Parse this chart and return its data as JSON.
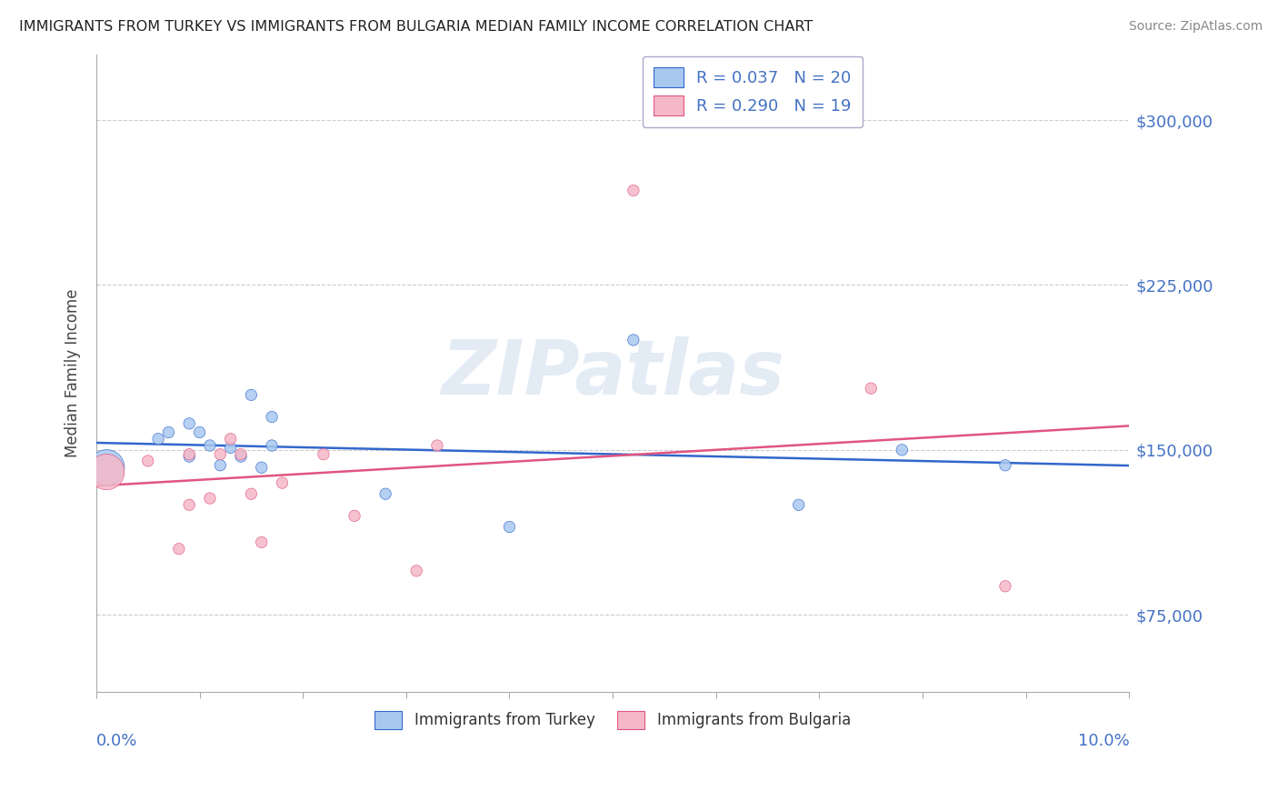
{
  "title": "IMMIGRANTS FROM TURKEY VS IMMIGRANTS FROM BULGARIA MEDIAN FAMILY INCOME CORRELATION CHART",
  "source": "Source: ZipAtlas.com",
  "ylabel": "Median Family Income",
  "x_min": 0.0,
  "x_max": 0.1,
  "y_min": 40000,
  "y_max": 330000,
  "yticks": [
    75000,
    150000,
    225000,
    300000
  ],
  "ytick_labels": [
    "$75,000",
    "$150,000",
    "$225,000",
    "$300,000"
  ],
  "watermark": "ZIPatlas",
  "turkey_R": 0.037,
  "turkey_N": 20,
  "bulgaria_R": 0.29,
  "bulgaria_N": 19,
  "turkey_color": "#a8c8f0",
  "bulgaria_color": "#f5b8c8",
  "turkey_line_color": "#3366cc",
  "bulgaria_line_color": "#e05580",
  "turkey_x": [
    0.001,
    0.006,
    0.007,
    0.009,
    0.009,
    0.01,
    0.011,
    0.012,
    0.013,
    0.014,
    0.015,
    0.016,
    0.017,
    0.017,
    0.028,
    0.04,
    0.052,
    0.068,
    0.078,
    0.088
  ],
  "turkey_y": [
    142000,
    155000,
    158000,
    162000,
    147000,
    158000,
    152000,
    143000,
    151000,
    147000,
    175000,
    142000,
    165000,
    152000,
    130000,
    115000,
    200000,
    125000,
    150000,
    143000
  ],
  "turkey_size": [
    800,
    80,
    80,
    80,
    80,
    80,
    80,
    80,
    80,
    80,
    80,
    80,
    80,
    80,
    80,
    80,
    80,
    80,
    80,
    80
  ],
  "bulgaria_x": [
    0.001,
    0.005,
    0.008,
    0.009,
    0.009,
    0.011,
    0.012,
    0.013,
    0.014,
    0.015,
    0.016,
    0.018,
    0.022,
    0.025,
    0.031,
    0.033,
    0.052,
    0.075,
    0.088
  ],
  "bulgaria_y": [
    140000,
    145000,
    105000,
    125000,
    148000,
    128000,
    148000,
    155000,
    148000,
    130000,
    108000,
    135000,
    148000,
    120000,
    95000,
    152000,
    268000,
    178000,
    88000
  ],
  "bulgaria_size": [
    800,
    80,
    80,
    80,
    80,
    80,
    80,
    80,
    80,
    80,
    80,
    80,
    80,
    80,
    80,
    80,
    80,
    80,
    80
  ],
  "background_color": "#ffffff",
  "grid_color": "#cccccc",
  "axis_color": "#aaaaaa",
  "text_color_blue": "#4472c4",
  "ylabel_color": "#444444",
  "title_color": "#222222",
  "source_color": "#888888"
}
